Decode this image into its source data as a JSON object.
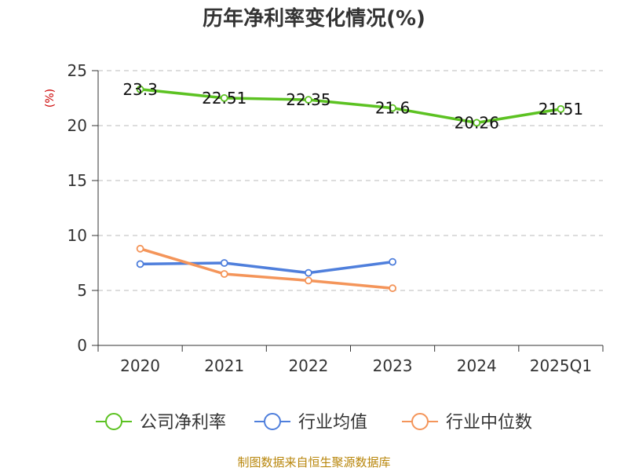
{
  "chart_data": {
    "type": "line",
    "title": "历年净利率变化情况(%)",
    "ylabel": "(%)",
    "xlabel": "",
    "categories": [
      "2020",
      "2021",
      "2022",
      "2023",
      "2024",
      "2025Q1"
    ],
    "ylim": [
      0,
      25
    ],
    "yticks": [
      0,
      5,
      10,
      15,
      20,
      25
    ],
    "grid": "horizontal-dashed",
    "legend_position": "bottom",
    "series": [
      {
        "name": "公司净利率",
        "color": "#5cc222",
        "values": [
          23.3,
          22.51,
          22.35,
          21.6,
          20.26,
          21.51
        ],
        "labels": [
          "23.3",
          "22.51",
          "22.35",
          "21.6",
          "20.26",
          "21.51"
        ]
      },
      {
        "name": "行业均值",
        "color": "#4f7fdc",
        "values": [
          7.4,
          7.5,
          6.6,
          7.6,
          null,
          null
        ]
      },
      {
        "name": "行业中位数",
        "color": "#f4955a",
        "values": [
          8.8,
          6.5,
          5.9,
          5.2,
          null,
          null
        ]
      }
    ]
  },
  "source": "制图数据来自恒生聚源数据库"
}
